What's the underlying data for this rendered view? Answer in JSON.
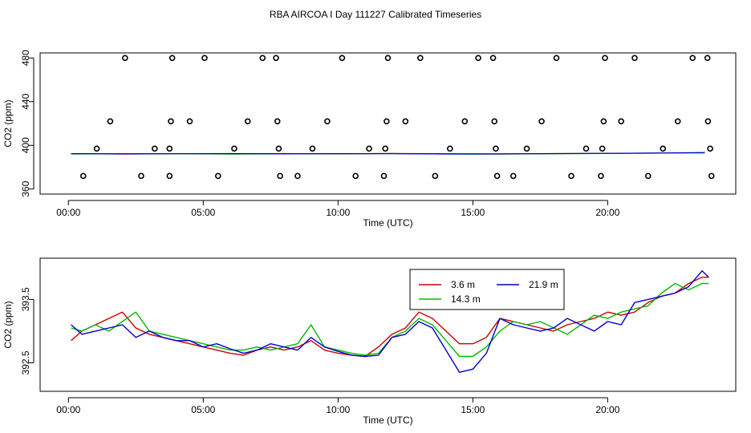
{
  "figure": {
    "title": "RBA AIRCOA I  Day 111227  Calibrated Timeseries"
  },
  "chart_data": [
    {
      "type": "scatter",
      "title": "",
      "xlabel": "Time (UTC)",
      "ylabel": "CO2 (ppm)",
      "xlim": [
        -1.05,
        24.75
      ],
      "ylim": [
        355.4,
        484.6
      ],
      "x_ticks": [
        0,
        5,
        10,
        15,
        20
      ],
      "x_tick_labels": [
        "00:00",
        "05:00",
        "10:00",
        "15:00",
        "20:00"
      ],
      "y_ticks": [
        360,
        400,
        440,
        480
      ],
      "y_tick_labels": [
        "360",
        "400",
        "440",
        "480"
      ],
      "grid": false,
      "series": [
        {
          "color": "#000000",
          "x": [
            0.55,
            1.05,
            1.55,
            2.1,
            2.7,
            3.2,
            3.75,
            3.75,
            3.8,
            3.85,
            4.5,
            5.05,
            5.55,
            6.15,
            6.65,
            7.2,
            7.7,
            7.75,
            7.8,
            7.85,
            8.5,
            9.05,
            9.6,
            10.15,
            10.65,
            11.15,
            11.7,
            11.75,
            11.8,
            11.85,
            12.5,
            13.05,
            13.6,
            14.15,
            14.7,
            15.2,
            15.75,
            15.8,
            15.85,
            15.9,
            16.5,
            17.0,
            17.55,
            18.1,
            18.65,
            19.2,
            19.75,
            19.8,
            19.85,
            19.9,
            20.5,
            21.0,
            21.5,
            22.05,
            22.6,
            23.15,
            23.7,
            23.72,
            23.8,
            23.85
          ],
          "y": [
            372,
            397,
            422,
            480,
            372,
            397,
            372,
            397,
            422,
            480,
            422,
            480,
            372,
            397,
            422,
            480,
            480,
            422,
            397,
            372,
            372,
            397,
            422,
            480,
            372,
            397,
            372,
            397,
            422,
            480,
            422,
            480,
            372,
            397,
            422,
            480,
            480,
            422,
            397,
            372,
            372,
            397,
            422,
            480,
            372,
            397,
            372,
            397,
            422,
            480,
            422,
            480,
            372,
            397,
            422,
            480,
            480,
            422,
            397,
            372
          ]
        },
        {
          "color": "#cc0000",
          "x": [
            0.1,
            2.0,
            4.0,
            6.0,
            8.0,
            10.0,
            12.0,
            14.0,
            16.0,
            18.0,
            20.0,
            22.0,
            23.6
          ],
          "y": [
            392.3,
            392.0,
            392.4,
            392.1,
            392.5,
            392.2,
            392.6,
            392.3,
            392.0,
            392.4,
            392.6,
            392.9,
            393.2
          ]
        },
        {
          "color": "#00aa00",
          "x": [
            0.1,
            3.0,
            6.0,
            9.0,
            12.0,
            15.0,
            18.0,
            21.0,
            23.6
          ],
          "y": [
            392.1,
            392.4,
            392.0,
            392.3,
            392.5,
            391.9,
            392.3,
            392.7,
            393.1
          ]
        },
        {
          "color": "#0000cc",
          "x": [
            0.1,
            2.0,
            4.0,
            6.0,
            8.0,
            10.0,
            12.0,
            14.0,
            16.0,
            18.0,
            20.0,
            22.0,
            23.6
          ],
          "y": [
            392.4,
            392.2,
            392.3,
            392.5,
            392.2,
            392.4,
            392.3,
            392.1,
            392.2,
            392.5,
            392.7,
            393.0,
            393.4
          ]
        }
      ]
    },
    {
      "type": "line",
      "title": "",
      "xlabel": "Time (UTC)",
      "ylabel": "CO2 (ppm)",
      "xlim": [
        -1.05,
        24.75
      ],
      "ylim": [
        392.05,
        394.15
      ],
      "x_ticks": [
        0,
        5,
        10,
        15,
        20
      ],
      "x_tick_labels": [
        "00:00",
        "05:00",
        "10:00",
        "15:00",
        "20:00"
      ],
      "y_ticks": [
        392.5,
        393.5
      ],
      "y_tick_labels": [
        "392.5",
        "393.5"
      ],
      "grid": false,
      "legend": {
        "placement": "top-center",
        "entries": [
          "3.6 m",
          "14.3 m",
          "21.9 m"
        ]
      },
      "series": [
        {
          "name": "3.6 m",
          "color": "#cc0000",
          "x": [
            0.1,
            0.5,
            1.0,
            1.5,
            2.0,
            2.5,
            3.0,
            3.5,
            4.0,
            4.5,
            5.0,
            5.5,
            6.0,
            6.5,
            7.0,
            7.5,
            8.0,
            8.5,
            9.0,
            9.5,
            10.0,
            10.5,
            11.0,
            11.5,
            12.0,
            12.5,
            13.0,
            13.5,
            14.0,
            14.5,
            15.0,
            15.5,
            16.0,
            16.5,
            17.0,
            17.5,
            18.0,
            18.5,
            19.0,
            19.5,
            20.0,
            20.5,
            21.0,
            21.5,
            22.0,
            22.5,
            23.0,
            23.5,
            23.75
          ],
          "y": [
            392.85,
            393.0,
            393.1,
            393.2,
            393.3,
            393.05,
            392.95,
            392.9,
            392.85,
            392.8,
            392.75,
            392.7,
            392.65,
            392.62,
            392.7,
            392.75,
            392.7,
            392.75,
            392.85,
            392.7,
            392.65,
            392.62,
            392.6,
            392.75,
            392.95,
            393.05,
            393.3,
            393.2,
            393.0,
            392.8,
            392.8,
            392.9,
            393.2,
            393.15,
            393.1,
            393.05,
            393.0,
            393.1,
            393.15,
            393.2,
            393.3,
            393.25,
            393.3,
            393.45,
            393.55,
            393.6,
            393.75,
            393.85,
            393.85
          ]
        },
        {
          "name": "14.3 m",
          "color": "#00bb00",
          "x": [
            0.1,
            0.5,
            1.0,
            1.5,
            2.0,
            2.5,
            3.0,
            3.5,
            4.0,
            4.5,
            5.0,
            5.5,
            6.0,
            6.5,
            7.0,
            7.5,
            8.0,
            8.5,
            9.0,
            9.5,
            10.0,
            10.5,
            11.0,
            11.5,
            12.0,
            12.5,
            13.0,
            13.5,
            14.0,
            14.5,
            15.0,
            15.5,
            16.0,
            16.5,
            17.0,
            17.5,
            18.0,
            18.5,
            19.0,
            19.5,
            20.0,
            20.5,
            21.0,
            21.5,
            22.0,
            22.5,
            23.0,
            23.5,
            23.75
          ],
          "y": [
            393.05,
            393.0,
            393.1,
            393.0,
            393.15,
            393.3,
            393.0,
            392.95,
            392.9,
            392.85,
            392.8,
            392.75,
            392.7,
            392.7,
            392.75,
            392.7,
            392.75,
            392.8,
            393.1,
            392.75,
            392.7,
            392.65,
            392.62,
            392.65,
            392.9,
            393.0,
            393.2,
            393.1,
            392.85,
            392.6,
            392.6,
            392.75,
            393.0,
            393.15,
            393.1,
            393.15,
            393.05,
            392.95,
            393.1,
            393.25,
            393.2,
            393.3,
            393.35,
            393.4,
            393.6,
            393.75,
            393.65,
            393.75,
            393.75
          ]
        },
        {
          "name": "21.9 m",
          "color": "#0000cc",
          "x": [
            0.1,
            0.5,
            1.0,
            1.5,
            2.0,
            2.5,
            3.0,
            3.5,
            4.0,
            4.5,
            5.0,
            5.5,
            6.0,
            6.5,
            7.0,
            7.5,
            8.0,
            8.5,
            9.0,
            9.5,
            10.0,
            10.5,
            11.0,
            11.5,
            12.0,
            12.5,
            13.0,
            13.5,
            14.0,
            14.5,
            15.0,
            15.5,
            16.0,
            16.5,
            17.0,
            17.5,
            18.0,
            18.5,
            19.0,
            19.5,
            20.0,
            20.5,
            21.0,
            21.5,
            22.0,
            22.5,
            23.0,
            23.5,
            23.75
          ],
          "y": [
            393.1,
            392.95,
            393.0,
            393.05,
            393.1,
            392.9,
            393.0,
            392.9,
            392.85,
            392.85,
            392.75,
            392.8,
            392.72,
            392.65,
            392.7,
            392.8,
            392.75,
            392.7,
            392.9,
            392.75,
            392.68,
            392.62,
            392.6,
            392.62,
            392.9,
            392.95,
            393.15,
            393.05,
            392.7,
            392.35,
            392.4,
            392.65,
            393.2,
            393.1,
            393.05,
            393.0,
            393.05,
            393.2,
            393.1,
            393.0,
            393.15,
            393.1,
            393.45,
            393.5,
            393.55,
            393.6,
            393.7,
            393.95,
            393.85
          ]
        }
      ]
    }
  ]
}
